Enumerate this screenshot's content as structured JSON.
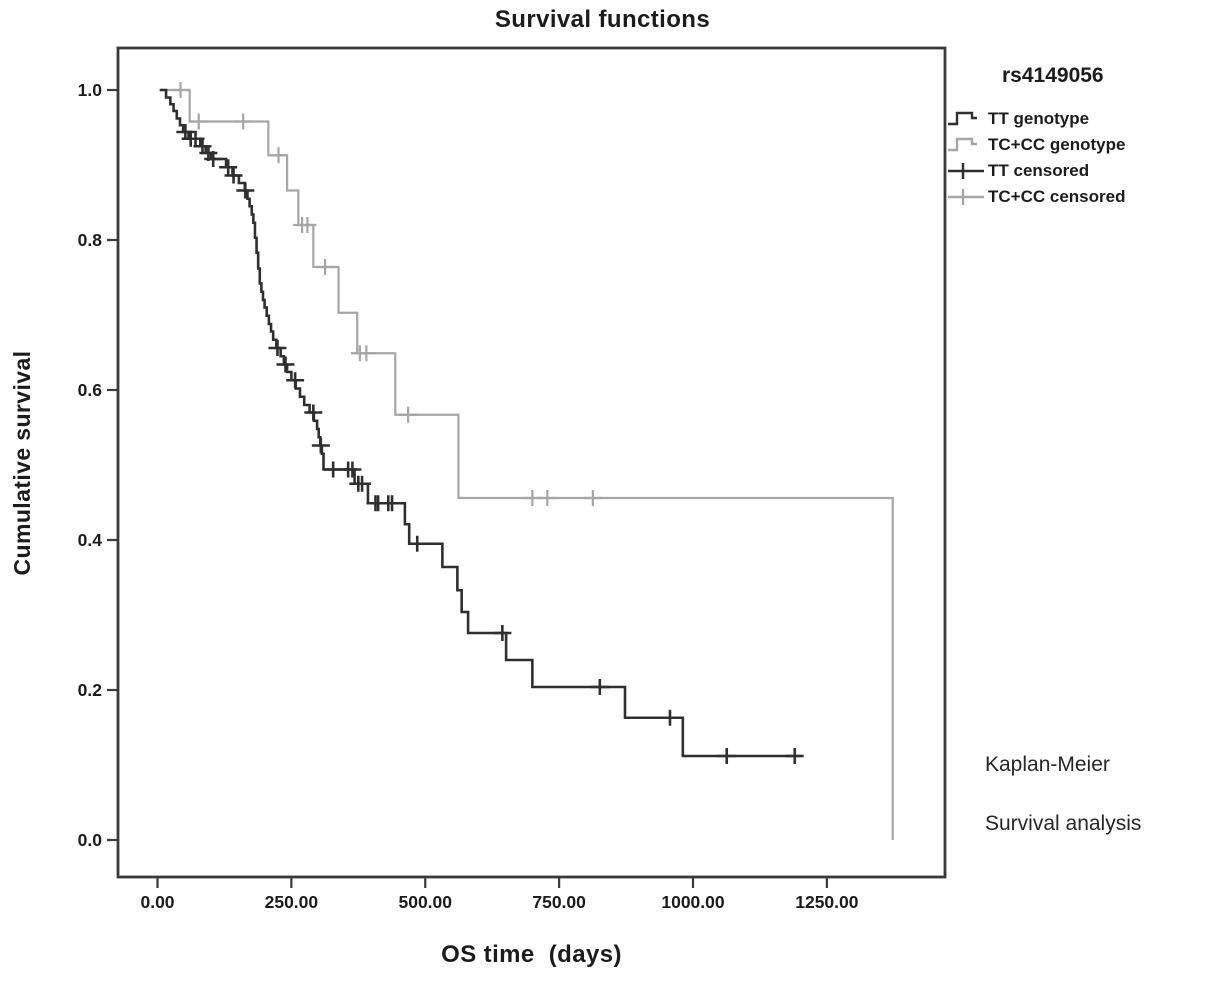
{
  "title": "Survival functions",
  "legend": {
    "title": "rs4149056",
    "items": [
      {
        "label": "TT genotype",
        "symbol": "step-line",
        "color": "#2f2f2f"
      },
      {
        "label": "TC+CC genotype",
        "symbol": "step-line",
        "color": "#a6a6a6"
      },
      {
        "label": "TT censored",
        "symbol": "censor-plus",
        "color": "#2f2f2f"
      },
      {
        "label": "TC+CC censored",
        "symbol": "censor-plus",
        "color": "#a6a6a6"
      }
    ]
  },
  "annotation": {
    "line1": "Kaplan-Meier",
    "line2": "Survival analysis"
  },
  "colors": {
    "tt": "#2f2f2f",
    "tccc": "#a6a6a6",
    "axis": "#3a3a3a",
    "text": "#1c1c1c"
  },
  "chart_data": {
    "type": "line",
    "subtype": "kaplan-meier-step",
    "title": "Survival functions",
    "xlabel": "OS time  (days)",
    "ylabel": "Cumulative survival",
    "grid": false,
    "legend_position": "right",
    "x_axis_range_days": [
      -74,
      1470
    ],
    "y_axis_range": [
      -0.05,
      1.056
    ],
    "x_ticks": [
      {
        "value": 0,
        "label": "0.00"
      },
      {
        "value": 250,
        "label": "250.00"
      },
      {
        "value": 500,
        "label": "500.00"
      },
      {
        "value": 750,
        "label": "750.00"
      },
      {
        "value": 1000,
        "label": "1000.00"
      },
      {
        "value": 1250,
        "label": "1250.00"
      }
    ],
    "y_ticks": [
      {
        "value": 1.0,
        "label": "1.0"
      },
      {
        "value": 0.8,
        "label": "0.8"
      },
      {
        "value": 0.6,
        "label": "0.6"
      },
      {
        "value": 0.4,
        "label": "0.4"
      },
      {
        "value": 0.2,
        "label": "0.2"
      },
      {
        "value": 0.0,
        "label": "0.0"
      }
    ],
    "series": [
      {
        "name": "TT genotype",
        "slug": "tt-genotype",
        "color": "#2f2f2f",
        "end": 1200,
        "steps": [
          [
            4,
            1.0
          ],
          [
            16,
            0.99
          ],
          [
            24,
            0.981
          ],
          [
            30,
            0.972
          ],
          [
            36,
            0.962
          ],
          [
            42,
            0.953
          ],
          [
            48,
            0.944
          ],
          [
            58,
            0.935
          ],
          [
            80,
            0.925
          ],
          [
            90,
            0.916
          ],
          [
            100,
            0.908
          ],
          [
            128,
            0.897
          ],
          [
            140,
            0.886
          ],
          [
            152,
            0.876
          ],
          [
            163,
            0.866
          ],
          [
            168,
            0.855
          ],
          [
            172,
            0.845
          ],
          [
            176,
            0.834
          ],
          [
            179,
            0.823
          ],
          [
            182,
            0.803
          ],
          [
            185,
            0.783
          ],
          [
            188,
            0.762
          ],
          [
            191,
            0.742
          ],
          [
            194,
            0.731
          ],
          [
            197,
            0.72
          ],
          [
            200,
            0.71
          ],
          [
            204,
            0.699
          ],
          [
            208,
            0.688
          ],
          [
            212,
            0.678
          ],
          [
            216,
            0.667
          ],
          [
            222,
            0.656
          ],
          [
            230,
            0.645
          ],
          [
            236,
            0.634
          ],
          [
            242,
            0.624
          ],
          [
            250,
            0.613
          ],
          [
            258,
            0.602
          ],
          [
            266,
            0.591
          ],
          [
            274,
            0.58
          ],
          [
            284,
            0.57
          ],
          [
            292,
            0.559
          ],
          [
            298,
            0.548
          ],
          [
            301,
            0.537
          ],
          [
            304,
            0.526
          ],
          [
            307,
            0.515
          ],
          [
            310,
            0.494
          ],
          [
            368,
            0.475
          ],
          [
            393,
            0.449
          ],
          [
            462,
            0.421
          ],
          [
            470,
            0.395
          ],
          [
            532,
            0.364
          ],
          [
            560,
            0.333
          ],
          [
            568,
            0.304
          ],
          [
            580,
            0.276
          ],
          [
            651,
            0.24
          ],
          [
            700,
            0.204
          ],
          [
            873,
            0.163
          ],
          [
            981,
            0.112
          ]
        ],
        "censored_times": [
          52,
          62,
          71,
          84,
          95,
          104,
          132,
          142,
          164,
          224,
          239,
          257,
          291,
          305,
          328,
          356,
          364,
          375,
          382,
          407,
          412,
          431,
          438,
          485,
          644,
          826,
          957,
          1063,
          1190
        ]
      },
      {
        "name": "TC+CC genotype",
        "slug": "tc-cc-genotype",
        "color": "#a6a6a6",
        "end": 1373,
        "steps": [
          [
            8,
            1.0
          ],
          [
            60,
            0.958
          ],
          [
            207,
            0.913
          ],
          [
            242,
            0.866
          ],
          [
            263,
            0.82
          ],
          [
            291,
            0.764
          ],
          [
            338,
            0.703
          ],
          [
            373,
            0.649
          ],
          [
            444,
            0.567
          ],
          [
            562,
            0.456
          ],
          [
            1373,
            0.0
          ]
        ],
        "censored_times": [
          43,
          77,
          160,
          226,
          270,
          280,
          313,
          378,
          390,
          468,
          700,
          728,
          813
        ]
      }
    ]
  }
}
